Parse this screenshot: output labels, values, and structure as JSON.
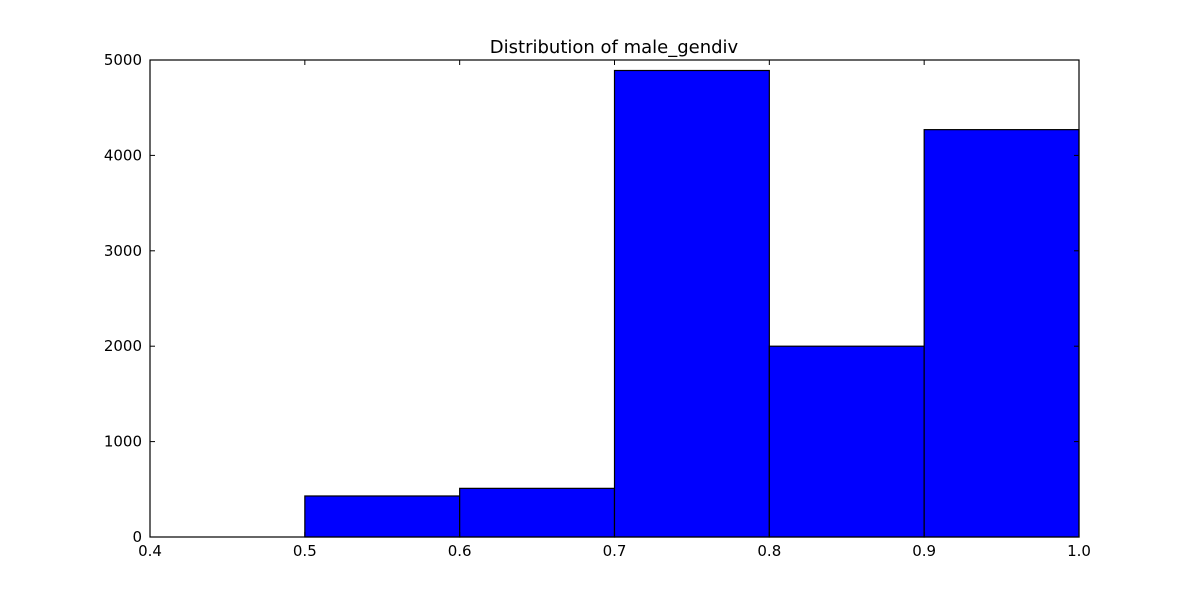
{
  "chart_data": {
    "type": "bar",
    "title": "Distribution of male_gendiv",
    "xlabel": "",
    "ylabel": "",
    "bar_color": "#0000ff",
    "bins": [
      {
        "start": 0.5,
        "end": 0.6,
        "count": 430
      },
      {
        "start": 0.6,
        "end": 0.7,
        "count": 510
      },
      {
        "start": 0.7,
        "end": 0.8,
        "count": 4890
      },
      {
        "start": 0.8,
        "end": 0.9,
        "count": 2000
      },
      {
        "start": 0.9,
        "end": 1.0,
        "count": 4270
      }
    ],
    "xlim": [
      0.4,
      1.0
    ],
    "ylim": [
      0,
      5000
    ],
    "xticks": [
      "0.4",
      "0.5",
      "0.6",
      "0.7",
      "0.8",
      "0.9",
      "1.0"
    ],
    "yticks": [
      "0",
      "1000",
      "2000",
      "3000",
      "4000",
      "5000"
    ],
    "grid": false
  }
}
